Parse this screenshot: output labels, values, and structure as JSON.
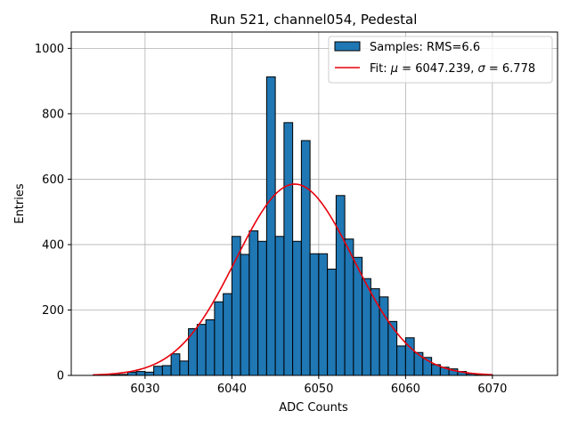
{
  "chart_data": {
    "type": "bar",
    "title": "Run 521, channel054, Pedestal",
    "xlabel": "ADC Counts",
    "ylabel": "Entries",
    "xlim": [
      6021.5,
      6077.5
    ],
    "ylim": [
      0,
      1050
    ],
    "xticks": [
      6030,
      6040,
      6050,
      6060,
      6070
    ],
    "yticks": [
      0,
      200,
      400,
      600,
      800,
      1000
    ],
    "grid": true,
    "legend_position": "top-right",
    "bin_edges": [
      6024,
      6025,
      6026,
      6027,
      6028,
      6029,
      6030,
      6031,
      6032,
      6033,
      6034,
      6035,
      6036,
      6037,
      6038,
      6039,
      6040,
      6041,
      6042,
      6043,
      6044,
      6045,
      6046,
      6047,
      6048,
      6049,
      6050,
      6051,
      6052,
      6053,
      6054,
      6055,
      6056,
      6057,
      6058,
      6059,
      6060,
      6061,
      6062,
      6063,
      6064,
      6065,
      6066,
      6067,
      6068,
      6069,
      6070
    ],
    "series": [
      {
        "name": "Samples: RMS=6.6",
        "type": "bar",
        "color": "#1f77b4",
        "edge_color": "#000000",
        "values": [
          1,
          0,
          2,
          3,
          10,
          12,
          10,
          28,
          30,
          66,
          44,
          143,
          156,
          170,
          225,
          250,
          425,
          370,
          442,
          410,
          913,
          425,
          773,
          410,
          718,
          372,
          372,
          325,
          550,
          417,
          361,
          296,
          265,
          240,
          165,
          90,
          115,
          70,
          55,
          33,
          25,
          20,
          12,
          5,
          2,
          2
        ]
      },
      {
        "name": "Fit: μ = 6047.239, σ = 6.778",
        "type": "line",
        "color": "#e8000b",
        "mu": 6047.239,
        "sigma": 6.778,
        "amplitude": 585,
        "x_range": [
          6024,
          6070
        ]
      }
    ],
    "legend": {
      "entry1_prefix": "Samples: RMS=6.6",
      "entry2_prefix": "Fit: ",
      "entry2_mu_symbol": "μ",
      "entry2_mid": " = 6047.239, ",
      "entry2_sigma_symbol": "σ",
      "entry2_suffix": " = 6.778"
    }
  }
}
